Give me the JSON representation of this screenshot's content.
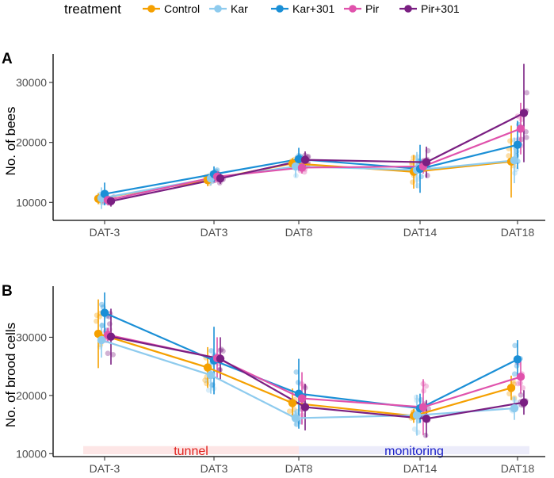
{
  "legend": {
    "title": "treatment",
    "items": [
      {
        "name": "Control",
        "color": "#f5a000"
      },
      {
        "name": "Kar",
        "color": "#8ecbee"
      },
      {
        "name": "Kar+301",
        "color": "#1a8fd6"
      },
      {
        "name": "Pir",
        "color": "#e052ac"
      },
      {
        "name": "Pir+301",
        "color": "#7a1f82"
      }
    ]
  },
  "chart_data": [
    {
      "type": "line",
      "panel_label": "A",
      "ylabel": "No. of bees",
      "categories": [
        "DAT-3",
        "DAT3",
        "DAT8",
        "DAT14",
        "DAT18"
      ],
      "x_days": [
        -3,
        3,
        8,
        14,
        18
      ],
      "yticks": [
        "10000",
        "20000",
        "30000"
      ],
      "ytick_values": [
        10000,
        20000,
        30000
      ],
      "ylim": [
        7000,
        34500
      ],
      "series": [
        {
          "name": "Control",
          "values": [
            10600,
            13700,
            16500,
            15100,
            16800
          ],
          "err": [
            900,
            1000,
            900,
            2800,
            6000
          ]
        },
        {
          "name": "Kar",
          "values": [
            10700,
            14000,
            16000,
            15400,
            17000
          ],
          "err": [
            1800,
            1200,
            1800,
            3000,
            3800
          ]
        },
        {
          "name": "Kar+301",
          "values": [
            11400,
            14700,
            17200,
            15600,
            19600
          ],
          "err": [
            1900,
            1300,
            1900,
            4000,
            4000
          ]
        },
        {
          "name": "Pir",
          "values": [
            10400,
            14300,
            15800,
            16000,
            22300
          ],
          "err": [
            900,
            900,
            1000,
            1200,
            4300
          ]
        },
        {
          "name": "Pir+301",
          "values": [
            10200,
            14000,
            17100,
            16700,
            24900
          ],
          "err": [
            900,
            900,
            1400,
            2600,
            8200
          ]
        }
      ]
    },
    {
      "type": "line",
      "panel_label": "B",
      "ylabel": "No. of brood cells",
      "categories": [
        "DAT-3",
        "DAT3",
        "DAT8",
        "DAT14",
        "DAT18"
      ],
      "x_days": [
        -3,
        3,
        8,
        14,
        18
      ],
      "yticks": [
        "10000",
        "20000",
        "30000"
      ],
      "ytick_values": [
        10000,
        20000,
        30000
      ],
      "ylim": [
        9500,
        38500
      ],
      "series": [
        {
          "name": "Control",
          "values": [
            30600,
            24800,
            18700,
            16500,
            21300
          ],
          "err": [
            5900,
            3500,
            2500,
            1200,
            2100
          ]
        },
        {
          "name": "Kar",
          "values": [
            29500,
            23500,
            16100,
            16600,
            17800
          ],
          "err": [
            3000,
            3200,
            1300,
            3500,
            2000
          ]
        },
        {
          "name": "Kar+301",
          "values": [
            34200,
            26000,
            20300,
            17800,
            26200
          ],
          "err": [
            3500,
            5800,
            6000,
            2500,
            3300
          ]
        },
        {
          "name": "Pir",
          "values": [
            30400,
            26400,
            19500,
            18000,
            23200
          ],
          "err": [
            1200,
            3600,
            4500,
            4800,
            2900
          ]
        },
        {
          "name": "Pir+301",
          "values": [
            30100,
            26300,
            18000,
            16000,
            18800
          ],
          "err": [
            4800,
            3700,
            4000,
            3200,
            2100
          ]
        }
      ],
      "bands": [
        {
          "label": "tunnel",
          "from_day": -3,
          "to_day": 8,
          "text_color": "#e0201c",
          "fill": "#fde6e6"
        },
        {
          "label": "monitoring",
          "from_day": 8,
          "to_day": 18,
          "text_color": "#1a20c8",
          "fill": "#ececfa"
        }
      ]
    }
  ]
}
